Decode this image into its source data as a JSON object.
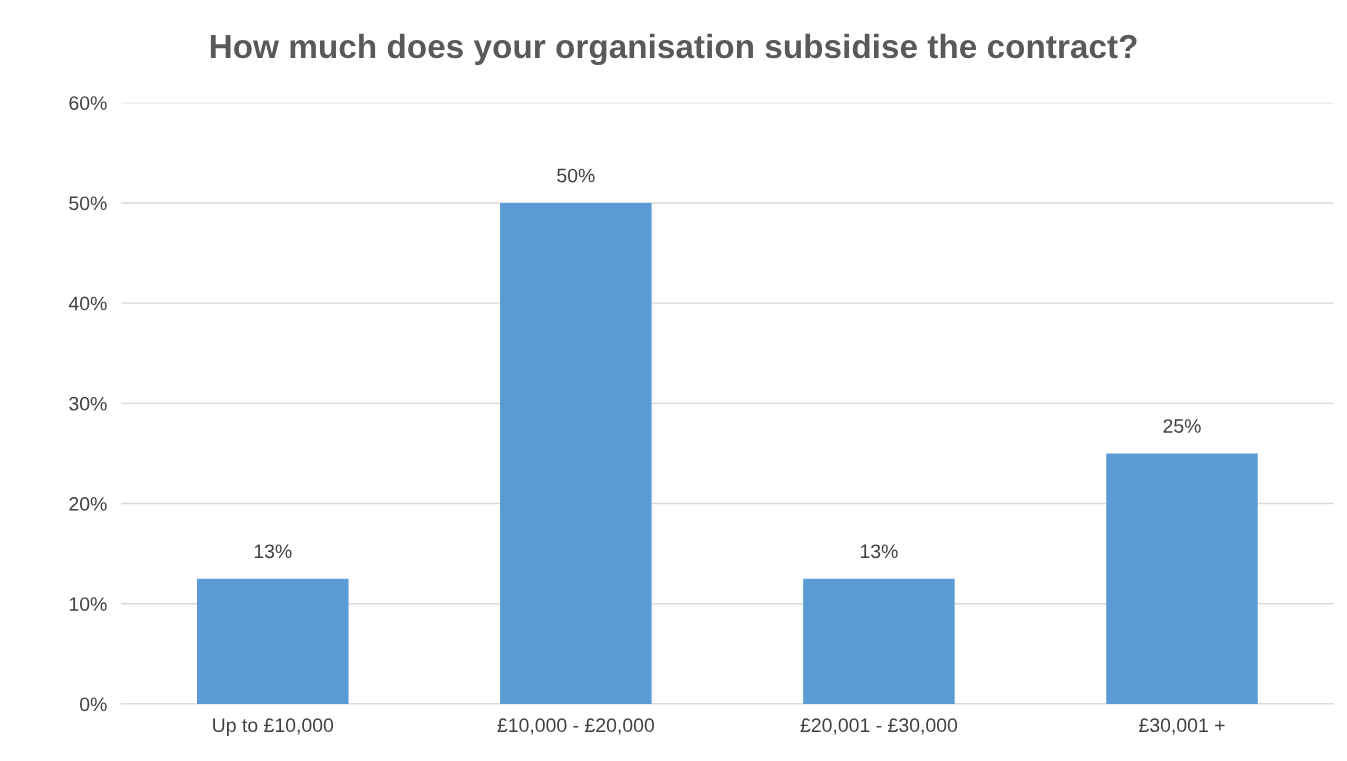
{
  "chart_data": {
    "type": "bar",
    "title": "How much does your organisation subsidise the contract?",
    "categories": [
      "Up to £10,000",
      "£10,000 - £20,000",
      "£20,001 - £30,000",
      "£30,001 +"
    ],
    "values": [
      12.5,
      50,
      12.5,
      25
    ],
    "value_labels": [
      "13%",
      "50%",
      "13%",
      "25%"
    ],
    "color": "#5b9bd5",
    "ylim": [
      0,
      60
    ],
    "yticks": [
      {
        "value": 0,
        "label": "0%"
      },
      {
        "value": 10,
        "label": "10%"
      },
      {
        "value": 20,
        "label": "20%"
      },
      {
        "value": 30,
        "label": "30%"
      },
      {
        "value": 40,
        "label": "40%"
      },
      {
        "value": 50,
        "label": "50%"
      },
      {
        "value": 60,
        "label": "60%"
      }
    ],
    "grid": "y"
  }
}
